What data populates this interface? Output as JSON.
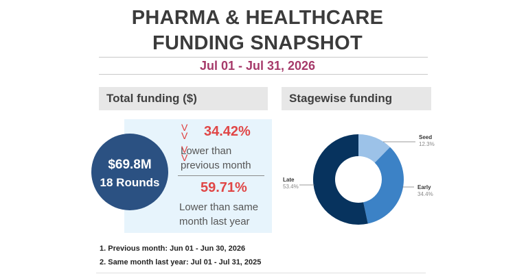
{
  "header": {
    "title_line1": "PHARMA & HEALTHCARE",
    "title_line2": "FUNDING SNAPSHOT",
    "date_range": "Jul 01 - Jul 31, 2026"
  },
  "total_funding": {
    "heading": "Total funding ($)",
    "amount": "$69.8M",
    "rounds": "18 Rounds",
    "vs_previous": {
      "percent": "34.42%",
      "line1": "Lower than",
      "line2": "previous month"
    },
    "vs_last_year": {
      "percent": "59.71%",
      "line1": "Lower than same",
      "line2": "month last year"
    },
    "chevron_glyph": "V",
    "trend_color": "#e04646"
  },
  "stagewise": {
    "heading": "Stagewise funding"
  },
  "footnotes": {
    "note1": "1. Previous month: Jun 01 - Jun 30, 2026",
    "note2": "2. Same month last year: Jul 01 - Jul 31, 2025"
  },
  "chart_data": {
    "type": "pie",
    "title": "Stagewise funding",
    "donut": true,
    "slices": [
      {
        "label": "Seed",
        "value": 12.3,
        "display": "12.3%",
        "color": "#9cc2e8"
      },
      {
        "label": "Early",
        "value": 34.4,
        "display": "34.4%",
        "color": "#3c82c6"
      },
      {
        "label": "Late",
        "value": 53.4,
        "display": "53.4%",
        "color": "#07335e"
      }
    ]
  }
}
